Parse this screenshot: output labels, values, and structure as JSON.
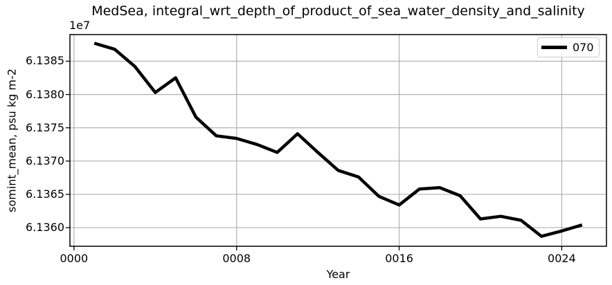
{
  "figure": {
    "title": "MedSea, integral_wrt_depth_of_product_of_sea_water_density_and_salinity",
    "offset_text": "1e7",
    "xlabel": "Year",
    "ylabel": "somint_mean, psu kg m-2",
    "legend_label": "070"
  },
  "chart_data": {
    "type": "line",
    "title": "MedSea, integral_wrt_depth_of_product_of_sea_water_density_and_salinity",
    "xlabel": "Year",
    "ylabel": "somint_mean, psu kg m-2",
    "y_offset_factor": "1e7",
    "grid": true,
    "grid_color": "#b0b0b0",
    "spine_color": "#000000",
    "legend_position": "upper right",
    "xlim": [
      -0.2,
      26.2
    ],
    "ylim": [
      6.13572,
      6.1389
    ],
    "xticks": {
      "positions": [
        0,
        8,
        16,
        24
      ],
      "labels": [
        "0000",
        "0008",
        "0016",
        "0024"
      ]
    },
    "yticks": {
      "positions": [
        6.136,
        6.1365,
        6.137,
        6.1375,
        6.138,
        6.1385
      ],
      "labels": [
        "6.1360",
        "6.1365",
        "6.1370",
        "6.1375",
        "6.1380",
        "6.1385"
      ]
    },
    "series": [
      {
        "name": "070",
        "color": "#000000",
        "linewidth": 4.5,
        "x": [
          1,
          2,
          3,
          4,
          5,
          6,
          7,
          8,
          9,
          10,
          11,
          12,
          13,
          14,
          15,
          16,
          17,
          18,
          19,
          20,
          21,
          22,
          23,
          24,
          25
        ],
        "values": [
          6.13877,
          6.13868,
          6.13842,
          6.13803,
          6.13825,
          6.13766,
          6.13738,
          6.13734,
          6.13725,
          6.13713,
          6.13741,
          6.13713,
          6.13686,
          6.13676,
          6.13647,
          6.13634,
          6.13658,
          6.1366,
          6.13648,
          6.13613,
          6.13617,
          6.13611,
          6.13587,
          6.13595,
          6.13604
        ]
      }
    ]
  }
}
